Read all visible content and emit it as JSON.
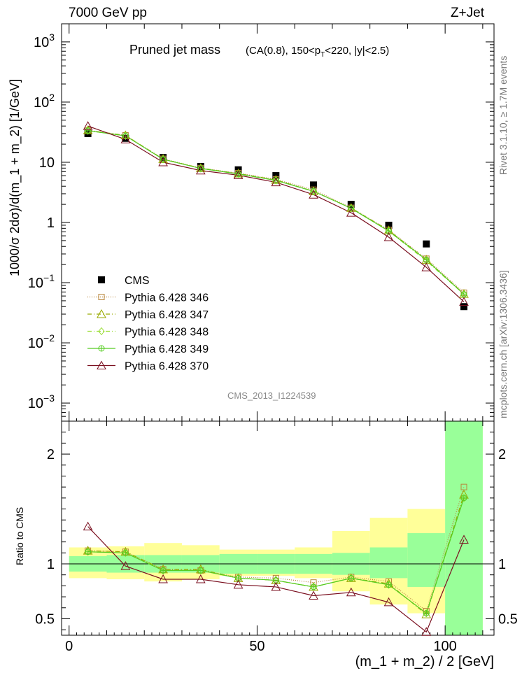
{
  "header": {
    "left": "7000 GeV pp",
    "right": "Z+Jet"
  },
  "side_labels": {
    "rivet": "Rivet 3.1.10, ≥ 1.7M events",
    "mcplots": "mcplots.cern.ch [arXiv:1306.3436]"
  },
  "analysis_id": "CMS_2013_I1224539",
  "chart_data": [
    {
      "type": "scatter",
      "panel": "main",
      "title": "Pruned jet mass",
      "title_detail": "(CA(0.8), 150<p_T<220, |y|<2.5)",
      "ylabel": "1000/σ 2dσ)/d(m_1 + m_2) [1/GeV]",
      "yscale": "log",
      "ylim": [
        0.0005,
        2000
      ],
      "xlim": [
        -2,
        113
      ],
      "yticks": [
        {
          "value": 0.001,
          "base": "10",
          "exp": "−3"
        },
        {
          "value": 0.01,
          "base": "10",
          "exp": "−2"
        },
        {
          "value": 0.1,
          "base": "10",
          "exp": "−1"
        },
        {
          "value": 1,
          "base": "1",
          "exp": ""
        },
        {
          "value": 10,
          "base": "10",
          "exp": ""
        },
        {
          "value": 100,
          "base": "10",
          "exp": "2"
        },
        {
          "value": 1000,
          "base": "10",
          "exp": "3"
        }
      ],
      "x": [
        5,
        15,
        25,
        35,
        45,
        55,
        65,
        75,
        85,
        95,
        105
      ],
      "series": [
        {
          "name": "CMS",
          "color": "#000000",
          "marker": "square-filled",
          "line": "none",
          "values": [
            30,
            25,
            12,
            8.5,
            7.5,
            6.0,
            4.2,
            2.0,
            0.9,
            0.44,
            0.04
          ]
        },
        {
          "name": "Pythia 6.428 346",
          "color": "#b8863b",
          "marker": "square-open",
          "line": "dotted",
          "values": [
            34,
            28,
            11.4,
            8.0,
            6.6,
            5.2,
            3.5,
            1.75,
            0.75,
            0.25,
            0.068
          ]
        },
        {
          "name": "Pythia 6.428 347",
          "color": "#99aa00",
          "marker": "triangle-open",
          "line": "dashdot",
          "values": [
            34,
            28,
            11.3,
            8.0,
            6.5,
            5.1,
            3.3,
            1.74,
            0.74,
            0.24,
            0.065
          ]
        },
        {
          "name": "Pythia 6.428 348",
          "color": "#99dd33",
          "marker": "diamond-open",
          "line": "dashdot",
          "values": [
            33.5,
            27.5,
            11.2,
            7.9,
            6.4,
            5.0,
            3.3,
            1.72,
            0.72,
            0.23,
            0.064
          ]
        },
        {
          "name": "Pythia 6.428 349",
          "color": "#55cc22",
          "marker": "circle-cross",
          "line": "solid",
          "values": [
            33.5,
            27.5,
            11.2,
            7.9,
            6.4,
            5.0,
            3.3,
            1.72,
            0.72,
            0.24,
            0.064
          ]
        },
        {
          "name": "Pythia 6.428 370",
          "color": "#7a0f1f",
          "marker": "triangle-open",
          "line": "solid",
          "values": [
            40,
            24,
            10,
            7.3,
            6.1,
            4.65,
            2.9,
            1.45,
            0.57,
            0.18,
            0.048
          ]
        }
      ]
    },
    {
      "type": "line",
      "panel": "ratio",
      "ylabel": "Ratio to CMS",
      "xlabel": "(m_1 + m_2) / 2 [GeV]",
      "ylim": [
        0.35,
        2.3
      ],
      "xlim": [
        -2,
        113
      ],
      "yticks": [
        0.5,
        1,
        2
      ],
      "xticks": [
        0,
        50,
        100
      ],
      "x": [
        5,
        15,
        25,
        35,
        45,
        55,
        65,
        75,
        85,
        95,
        105
      ],
      "bins": [
        [
          0,
          10
        ],
        [
          10,
          20
        ],
        [
          20,
          30
        ],
        [
          30,
          40
        ],
        [
          40,
          50
        ],
        [
          50,
          60
        ],
        [
          60,
          70
        ],
        [
          70,
          80
        ],
        [
          80,
          90
        ],
        [
          90,
          100
        ],
        [
          100,
          110
        ]
      ],
      "band_stat": [
        [
          0.93,
          1.07
        ],
        [
          0.92,
          1.08
        ],
        [
          0.92,
          1.08
        ],
        [
          0.92,
          1.08
        ],
        [
          0.91,
          1.09
        ],
        [
          0.91,
          1.09
        ],
        [
          0.91,
          1.09
        ],
        [
          0.9,
          1.1
        ],
        [
          0.87,
          1.15
        ],
        [
          0.79,
          1.28
        ],
        [
          0.2,
          3.0
        ]
      ],
      "band_total": [
        [
          0.87,
          1.15
        ],
        [
          0.86,
          1.16
        ],
        [
          0.84,
          1.19
        ],
        [
          0.86,
          1.17
        ],
        [
          0.89,
          1.13
        ],
        [
          0.89,
          1.13
        ],
        [
          0.87,
          1.15
        ],
        [
          0.75,
          1.3
        ],
        [
          0.63,
          1.42
        ],
        [
          0.55,
          1.5
        ],
        [
          0.2,
          3.0
        ]
      ],
      "series": [
        {
          "name": "Pythia 6.428 346",
          "values": [
            1.12,
            1.11,
            0.95,
            0.94,
            0.88,
            0.87,
            0.83,
            0.88,
            0.84,
            0.57,
            1.7
          ]
        },
        {
          "name": "Pythia 6.428 347",
          "values": [
            1.12,
            1.11,
            0.95,
            0.95,
            0.87,
            0.85,
            0.79,
            0.87,
            0.82,
            0.54,
            1.63
          ]
        },
        {
          "name": "Pythia 6.428 348",
          "values": [
            1.11,
            1.1,
            0.94,
            0.94,
            0.87,
            0.85,
            0.79,
            0.87,
            0.81,
            0.55,
            1.6
          ]
        },
        {
          "name": "Pythia 6.428 349",
          "values": [
            1.11,
            1.1,
            0.94,
            0.94,
            0.87,
            0.85,
            0.79,
            0.87,
            0.81,
            0.55,
            1.6
          ]
        },
        {
          "name": "Pythia 6.428 370",
          "values": [
            1.34,
            0.98,
            0.86,
            0.86,
            0.81,
            0.79,
            0.71,
            0.74,
            0.65,
            0.38,
            1.22
          ]
        }
      ]
    }
  ]
}
